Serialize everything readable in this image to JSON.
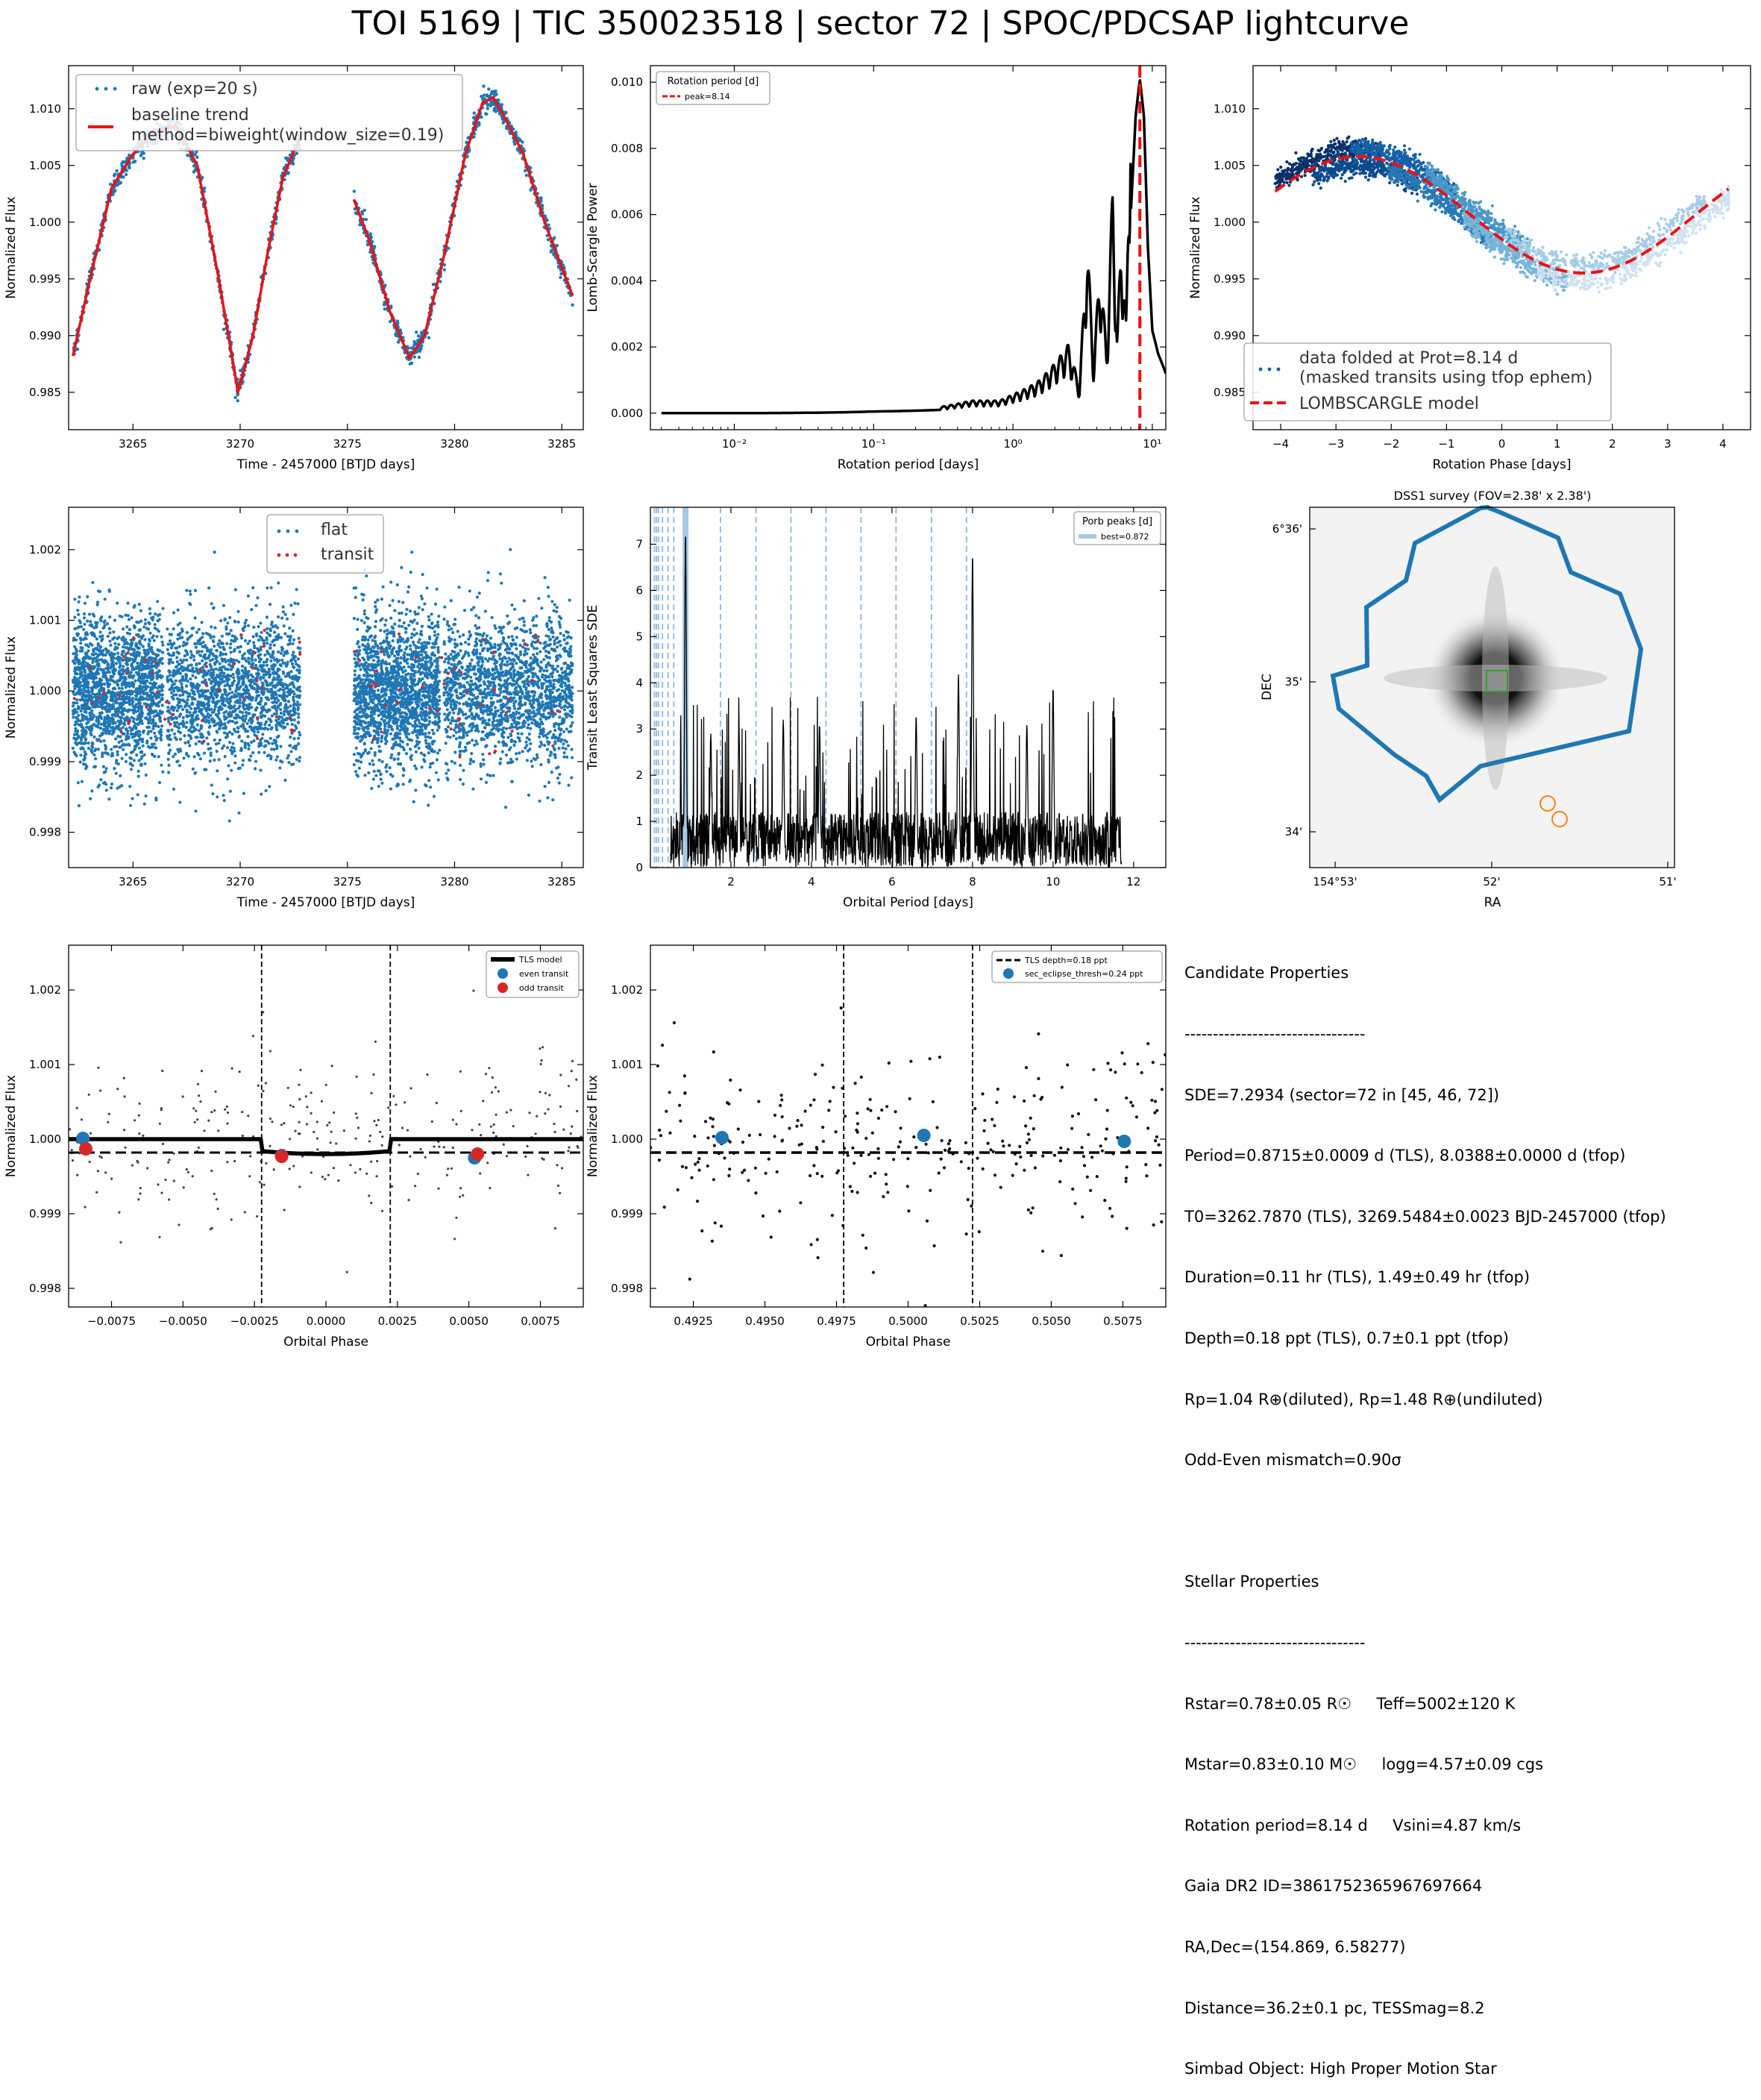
{
  "title": "TOI 5169 | TIC 350023518 | sector 72 | SPOC/PDCSAP lightcurve",
  "colors": {
    "blue": "#1f77b4",
    "red": "#d62728",
    "trend_red": "#ee1111",
    "orange": "#ff7f0e",
    "green": "#2ca02c",
    "light_blue": "#a8c9e6"
  },
  "chart_data": [
    {
      "id": "raw_lightcurve",
      "type": "scatter",
      "xlabel": "Time - 2457000 [BTJD days]",
      "ylabel": "Normalized Flux",
      "xlim": [
        3262,
        3286
      ],
      "ylim": [
        0.9817,
        1.0138
      ],
      "xticks": [
        3265,
        3270,
        3275,
        3280,
        3285
      ],
      "yticks": [
        0.985,
        0.99,
        0.995,
        1.0,
        1.005,
        1.01
      ],
      "ytick_labels": [
        "0.985",
        "0.990",
        "0.995",
        "1.000",
        "1.005",
        "1.010"
      ],
      "legend_position": "upper left",
      "series": [
        {
          "name": "raw (exp=20 s)",
          "style": "points",
          "color": "#1f77b4"
        },
        {
          "name": "baseline trend\nmethod=biweight(window_size=0.19)",
          "style": "line",
          "color": "#ee1111"
        }
      ],
      "trend_segments": [
        {
          "x": [
            3262.2,
            3263.0,
            3264.0,
            3265.0,
            3266.0,
            3267.0,
            3268.0,
            3269.0,
            3269.9,
            3270.6,
            3271.3,
            3272.0,
            3272.8
          ],
          "y": [
            0.9882,
            0.995,
            1.003,
            1.006,
            1.008,
            1.0085,
            1.005,
            0.995,
            0.985,
            0.99,
            0.9975,
            1.004,
            1.0075
          ]
        },
        {
          "x": [
            3275.3,
            3276.0,
            3277.0,
            3277.9,
            3278.6,
            3279.5,
            3280.5,
            3281.3,
            3281.8,
            3282.4,
            3283.2,
            3284.2,
            3285.5
          ],
          "y": [
            1.002,
            0.9985,
            0.992,
            0.988,
            0.99,
            0.997,
            1.006,
            1.0105,
            1.011,
            1.009,
            1.006,
            1.0,
            0.9935
          ]
        }
      ]
    },
    {
      "id": "rotation_periodogram",
      "type": "line",
      "xlabel": "Rotation period [days]",
      "ylabel": "Lomb-Scargle Power",
      "xscale": "log",
      "xlim": [
        0.0025,
        12.5
      ],
      "ylim": [
        -0.0005,
        0.0105
      ],
      "xticks": [
        0.01,
        0.1,
        1,
        10
      ],
      "xtick_labels": [
        "10⁻²",
        "10⁻¹",
        "10⁰",
        "10¹"
      ],
      "yticks": [
        0.0,
        0.002,
        0.004,
        0.006,
        0.008,
        0.01
      ],
      "ytick_labels": [
        "0.000",
        "0.002",
        "0.004",
        "0.006",
        "0.008",
        "0.010"
      ],
      "legend_title": "Rotation period [d]",
      "legend_position": "upper left",
      "peak_label": "peak=8.14",
      "peak": 8.14,
      "x": [
        0.003,
        0.01,
        0.05,
        0.1,
        0.3,
        0.5,
        0.8,
        1.0,
        1.5,
        2.0,
        2.5,
        3.0,
        3.4,
        3.8,
        4.2,
        4.7,
        5.2,
        5.6,
        6.0,
        6.5,
        7.0,
        7.6,
        8.14,
        8.7,
        9.3,
        10.0,
        11.0,
        12.5
      ],
      "y": [
        0.0,
        0.0,
        2e-05,
        5e-05,
        0.0001,
        0.0002,
        0.0002,
        0.0003,
        0.0005,
        0.0008,
        0.0011,
        0.0004,
        0.0028,
        0.0008,
        0.0024,
        0.001,
        0.0037,
        0.0012,
        0.003,
        0.0014,
        0.006,
        0.009,
        0.0101,
        0.009,
        0.005,
        0.0025,
        0.0018,
        0.0012
      ]
    },
    {
      "id": "phase_folded_rotation",
      "type": "scatter",
      "xlabel": "Rotation Phase [days]",
      "ylabel": "Normalized Flux",
      "xlim": [
        -4.5,
        4.5
      ],
      "ylim": [
        0.9817,
        1.0138
      ],
      "xticks": [
        -4,
        -3,
        -2,
        -1,
        0,
        1,
        2,
        3,
        4
      ],
      "xtick_labels": [
        "−4",
        "−3",
        "−2",
        "−1",
        "0",
        "1",
        "2",
        "3",
        "4"
      ],
      "yticks": [
        0.985,
        0.99,
        0.995,
        1.0,
        1.005,
        1.01
      ],
      "ytick_labels": [
        "0.985",
        "0.990",
        "0.995",
        "1.000",
        "1.005",
        "1.010"
      ],
      "legend_position": "lower left",
      "series": [
        {
          "name": "data folded at Prot=8.14 d\n(masked transits using tfop ephem)",
          "style": "points",
          "color": "#1f77b4"
        },
        {
          "name": "LOMBSCARGLE model",
          "style": "dashed",
          "color": "#ee1111"
        }
      ],
      "model": {
        "amplitude": 0.0107,
        "center": 1.00065,
        "period": 8.14,
        "phase_of_max": -2.6
      }
    },
    {
      "id": "flattened_lightcurve",
      "type": "scatter",
      "xlabel": "Time - 2457000 [BTJD days]",
      "ylabel": "Normalized Flux",
      "xlim": [
        3262,
        3286
      ],
      "ylim": [
        0.9975,
        1.0026
      ],
      "xticks": [
        3265,
        3270,
        3275,
        3280,
        3285
      ],
      "yticks": [
        0.998,
        0.999,
        1.0,
        1.001,
        1.002
      ],
      "ytick_labels": [
        "0.998",
        "0.999",
        "1.000",
        "1.001",
        "1.002"
      ],
      "legend_position": "upper center",
      "series": [
        {
          "name": "flat",
          "style": "points",
          "color": "#1f77b4"
        },
        {
          "name": "transit",
          "style": "points",
          "color": "#d62728"
        }
      ]
    },
    {
      "id": "tls_periodogram",
      "type": "line",
      "xlabel": "Orbital Period [days]",
      "ylabel": "Transit Least Squares SDE",
      "xlim": [
        0,
        12.8
      ],
      "ylim": [
        0,
        7.8
      ],
      "xticks": [
        2,
        4,
        6,
        8,
        10,
        12
      ],
      "yticks": [
        0,
        1,
        2,
        3,
        4,
        5,
        6,
        7
      ],
      "legend_title": "Porb peaks [d]",
      "legend_position": "upper right",
      "best_label": "best=0.872",
      "best": 0.872,
      "peak_lines": [
        0.1,
        0.15,
        0.2,
        0.3,
        0.44,
        0.58,
        1.74,
        2.62,
        3.49,
        4.36,
        5.23,
        6.1,
        6.98,
        7.85
      ],
      "peaks": [
        [
          0.872,
          7.28
        ],
        [
          1.5,
          2.9
        ],
        [
          2.2,
          3.0
        ],
        [
          3.3,
          3.2
        ],
        [
          4.2,
          3.1
        ],
        [
          6.6,
          3.3
        ],
        [
          7.65,
          4.2
        ],
        [
          8.0,
          6.8
        ],
        [
          9.35,
          3.1
        ],
        [
          10.0,
          3.9
        ],
        [
          11.6,
          1.1
        ]
      ]
    },
    {
      "id": "dss_image",
      "type": "heatmap",
      "title": "DSS1 survey (FOV=2.38' x 2.38')",
      "xlabel": "RA",
      "ylabel": "DEC",
      "xtick_labels": [
        "154°53'",
        "52'",
        "51'"
      ],
      "ytick_labels": [
        "6°36'",
        "35'",
        "34'"
      ]
    },
    {
      "id": "tls_fold_odd_even",
      "type": "scatter",
      "xlabel": "Orbital Phase",
      "ylabel": "Normalized Flux",
      "xlim": [
        -0.009,
        0.009
      ],
      "ylim": [
        0.99775,
        1.0026
      ],
      "xticks": [
        -0.0075,
        -0.005,
        -0.0025,
        0.0,
        0.0025,
        0.005,
        0.0075
      ],
      "xtick_labels": [
        "−0.0075",
        "−0.0050",
        "−0.0025",
        "0.0000",
        "0.0025",
        "0.0050",
        "0.0075"
      ],
      "yticks": [
        0.998,
        0.999,
        1.0,
        1.001,
        1.002
      ],
      "ytick_labels": [
        "0.998",
        "0.999",
        "1.000",
        "1.001",
        "1.002"
      ],
      "legend_position": "upper right",
      "series": [
        {
          "name": "TLS model",
          "style": "line",
          "color": "#000000"
        },
        {
          "name": "even transit",
          "style": "marker",
          "color": "#1f77b4"
        },
        {
          "name": "odd transit",
          "style": "marker",
          "color": "#d62728"
        }
      ],
      "transit_window": [
        -0.00225,
        0.00225
      ],
      "depth_level": 0.99982,
      "even_points": [
        [
          -0.0085,
          1.00001
        ],
        [
          -0.00155,
          0.99978
        ],
        [
          0.0052,
          0.99975
        ]
      ],
      "odd_points": [
        [
          -0.0084,
          0.99987
        ],
        [
          -0.00155,
          0.99977
        ],
        [
          0.0053,
          0.9998
        ]
      ]
    },
    {
      "id": "secondary_eclipse",
      "type": "scatter",
      "xlabel": "Orbital Phase",
      "ylabel": "Normalized Flux",
      "xlim": [
        0.491,
        0.509
      ],
      "ylim": [
        0.99775,
        1.0026
      ],
      "xticks": [
        0.4925,
        0.495,
        0.4975,
        0.5,
        0.5025,
        0.505,
        0.5075
      ],
      "xtick_labels": [
        "0.4925",
        "0.4950",
        "0.4975",
        "0.5000",
        "0.5025",
        "0.5050",
        "0.5075"
      ],
      "yticks": [
        0.998,
        0.999,
        1.0,
        1.001,
        1.002
      ],
      "ytick_labels": [
        "0.998",
        "0.999",
        "1.000",
        "1.001",
        "1.002"
      ],
      "legend_position": "upper right",
      "series": [
        {
          "name": "TLS depth=0.18 ppt",
          "style": "dashed",
          "color": "#000000"
        },
        {
          "name": "sec_eclipse_thresh=0.24 ppt",
          "style": "marker",
          "color": "#1f77b4"
        }
      ],
      "window": [
        0.49775,
        0.50225
      ],
      "depth_level": 0.99982,
      "binned_points": [
        [
          0.4935,
          1.00002
        ],
        [
          0.50055,
          1.00005
        ],
        [
          0.50755,
          0.99997
        ]
      ]
    }
  ],
  "candidate": {
    "heading": "Candidate Properties",
    "divider": "--------------------------------",
    "lines": [
      "SDE=7.2934 (sector=72 in [45, 46, 72])",
      "Period=0.8715±0.0009 d (TLS), 8.0388±0.0000 d (tfop)",
      "T0=3262.7870 (TLS), 3269.5484±0.0023 BJD-2457000 (tfop)",
      "Duration=0.11 hr (TLS), 1.49±0.49 hr (tfop)",
      "Depth=0.18 ppt (TLS), 0.7±0.1 ppt (tfop)",
      "Rp=1.04 R⊕(diluted), Rp=1.48 R⊕(undiluted)",
      "Odd-Even mismatch=0.90σ"
    ]
  },
  "stellar": {
    "heading": "Stellar Properties",
    "divider": "--------------------------------",
    "lines": [
      "Rstar=0.78±0.05 R☉     Teff=5002±120 K",
      "Mstar=0.83±0.10 M☉     logg=4.57±0.09 cgs",
      "Rotation period=8.14 d     Vsini=4.87 km/s",
      "Gaia DR2 ID=3861752365967697664",
      "RA,Dec=(154.869, 6.58277)",
      "Distance=36.2±0.1 pc, TESSmag=8.2",
      "Simbad Object: High Proper Motion Star"
    ]
  }
}
